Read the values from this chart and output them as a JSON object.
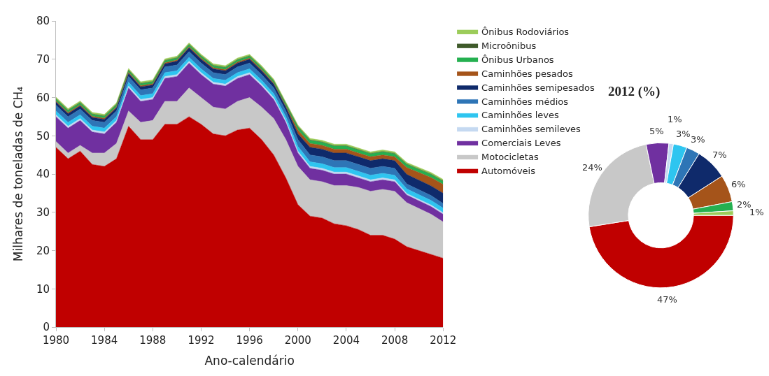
{
  "chart_data": [
    {
      "type": "area",
      "stacked": true,
      "xlabel": "Ano-calendário",
      "ylabel": "Milhares de toneladas de CH₄",
      "x": [
        1980,
        1981,
        1982,
        1983,
        1984,
        1985,
        1986,
        1987,
        1988,
        1989,
        1990,
        1991,
        1992,
        1993,
        1994,
        1995,
        1996,
        1997,
        1998,
        1999,
        2000,
        2001,
        2002,
        2003,
        2004,
        2005,
        2006,
        2007,
        2008,
        2009,
        2010,
        2011,
        2012
      ],
      "xlim": [
        1980,
        2012
      ],
      "xticks": [
        1980,
        1984,
        1988,
        1992,
        1996,
        2000,
        2004,
        2008,
        2012
      ],
      "ylim": [
        0,
        80
      ],
      "yticks": [
        0,
        10,
        20,
        30,
        40,
        50,
        60,
        70,
        80
      ],
      "legend": "right",
      "series": [
        {
          "name": "Automóveis",
          "color": "#c00000",
          "values": [
            47,
            44,
            46,
            42.5,
            42,
            44,
            52.5,
            49,
            49,
            53,
            53,
            55,
            53,
            50.5,
            50,
            51.5,
            52,
            49,
            45,
            39,
            32,
            29,
            28.5,
            27,
            26.5,
            25.5,
            24,
            24,
            23,
            21,
            20,
            19,
            18
          ]
        },
        {
          "name": "Motocicletas",
          "color": "#c8c8c8",
          "values": [
            1.5,
            1.5,
            1.5,
            3,
            3.5,
            4,
            4,
            4.5,
            5,
            6,
            6,
            7.5,
            7,
            7,
            7,
            7.5,
            8,
            8.5,
            9.5,
            10,
            10,
            9.5,
            9.5,
            10,
            10.5,
            11,
            11.5,
            12,
            12.5,
            11.5,
            11,
            10.5,
            9.5
          ]
        },
        {
          "name": "Comerciais Leves",
          "color": "#7030a0",
          "values": [
            6.5,
            6.5,
            6.5,
            5.5,
            5,
            5.5,
            6,
            5.5,
            5.5,
            6,
            6.5,
            6.5,
            6,
            6,
            6,
            6,
            6,
            5.5,
            5,
            4.5,
            3.5,
            3,
            3,
            3,
            3,
            2.5,
            2.5,
            2.5,
            2.5,
            2,
            2,
            2,
            2
          ]
        },
        {
          "name": "Caminhões semileves",
          "color": "#c5d9f1",
          "values": [
            0.5,
            0.5,
            0.5,
            0.5,
            0.5,
            0.5,
            0.5,
            0.5,
            0.5,
            0.5,
            0.5,
            0.5,
            0.5,
            0.5,
            0.5,
            0.5,
            0.5,
            0.5,
            0.5,
            0.5,
            0.5,
            0.5,
            0.5,
            0.5,
            0.5,
            0.5,
            0.5,
            0.5,
            0.5,
            0.4,
            0.4,
            0.4,
            0.4
          ]
        },
        {
          "name": "Caminhões leves",
          "color": "#2ec5f0",
          "values": [
            1,
            1,
            1,
            1,
            1,
            1,
            1,
            1,
            1,
            1,
            1,
            1,
            1,
            1,
            1,
            1,
            1,
            1,
            1,
            1,
            1.2,
            1.2,
            1.2,
            1.2,
            1.2,
            1.2,
            1.2,
            1.2,
            1.2,
            1.2,
            1.2,
            1.2,
            1.2
          ]
        },
        {
          "name": "Caminhões médios",
          "color": "#2e75b6",
          "values": [
            1.5,
            1.5,
            1.5,
            1.5,
            1.5,
            1.5,
            1.5,
            1.5,
            1.5,
            1.5,
            1.5,
            1.5,
            1.5,
            1.5,
            1.5,
            1.5,
            1.5,
            1.5,
            1.5,
            1.5,
            1.8,
            1.8,
            1.8,
            1.8,
            1.8,
            1.8,
            1.8,
            1.8,
            1.8,
            1.3,
            1.3,
            1.3,
            1.2
          ]
        },
        {
          "name": "Caminhões semipesados",
          "color": "#0f2a6b",
          "values": [
            0.8,
            0.8,
            0.8,
            0.8,
            0.8,
            0.8,
            0.8,
            0.8,
            0.8,
            0.8,
            1,
            1,
            1,
            1,
            1,
            1,
            1,
            1,
            1,
            1,
            1.5,
            2,
            2,
            2,
            2,
            2,
            2,
            2,
            2,
            2.5,
            2.5,
            2.5,
            2.7
          ]
        },
        {
          "name": "Caminhões pesados",
          "color": "#a5541a",
          "values": [
            0.3,
            0.3,
            0.3,
            0.3,
            0.3,
            0.3,
            0.3,
            0.3,
            0.3,
            0.3,
            0.3,
            0.3,
            0.3,
            0.3,
            0.3,
            0.3,
            0.3,
            0.3,
            0.3,
            0.3,
            1,
            1,
            1,
            1,
            1,
            1,
            1,
            1,
            1,
            1.8,
            2,
            2.2,
            2.3
          ]
        },
        {
          "name": "Ônibus Urbanos",
          "color": "#25b050",
          "values": [
            0.5,
            0.5,
            0.5,
            0.5,
            0.5,
            0.5,
            0.5,
            0.5,
            0.5,
            0.5,
            0.5,
            0.5,
            0.5,
            0.5,
            0.5,
            0.5,
            0.5,
            0.5,
            0.5,
            0.5,
            0.8,
            0.8,
            0.8,
            0.8,
            0.8,
            0.8,
            0.8,
            0.8,
            0.8,
            0.8,
            0.8,
            0.8,
            0.8
          ]
        },
        {
          "name": "Microônibus",
          "color": "#3f5a2a",
          "values": [
            0.1,
            0.1,
            0.1,
            0.1,
            0.1,
            0.1,
            0.1,
            0.1,
            0.1,
            0.1,
            0.1,
            0.1,
            0.1,
            0.1,
            0.1,
            0.1,
            0.1,
            0.1,
            0.1,
            0.1,
            0.1,
            0.1,
            0.1,
            0.1,
            0.1,
            0.1,
            0.1,
            0.1,
            0.1,
            0.1,
            0.1,
            0.1,
            0.1
          ]
        },
        {
          "name": "Ônibus Rodoviários",
          "color": "#9ccc5a",
          "values": [
            0.4,
            0.4,
            0.4,
            0.4,
            0.4,
            0.4,
            0.4,
            0.4,
            0.4,
            0.4,
            0.4,
            0.4,
            0.4,
            0.4,
            0.4,
            0.4,
            0.4,
            0.4,
            0.4,
            0.4,
            0.4,
            0.4,
            0.4,
            0.4,
            0.4,
            0.4,
            0.4,
            0.4,
            0.4,
            0.4,
            0.4,
            0.4,
            0.4
          ]
        }
      ]
    },
    {
      "type": "donut",
      "title": "2012 (%)",
      "categories": [
        null,
        null,
        null,
        null,
        null,
        null,
        null,
        null,
        null,
        null
      ],
      "values": [
        47,
        24,
        5,
        1,
        3,
        3,
        7,
        6,
        2,
        1
      ],
      "value_labels": [
        "47%",
        "24%",
        "5%",
        "1%",
        "3%",
        "3%",
        "7%",
        "6%",
        "2%",
        "1%"
      ],
      "colors": [
        "#c00000",
        "#c8c8c8",
        "#7030a0",
        "#c5d9f1",
        "#2ec5f0",
        "#2e75b6",
        "#0f2a6b",
        "#a5541a",
        "#25b050",
        "#9ccc5a"
      ]
    }
  ]
}
